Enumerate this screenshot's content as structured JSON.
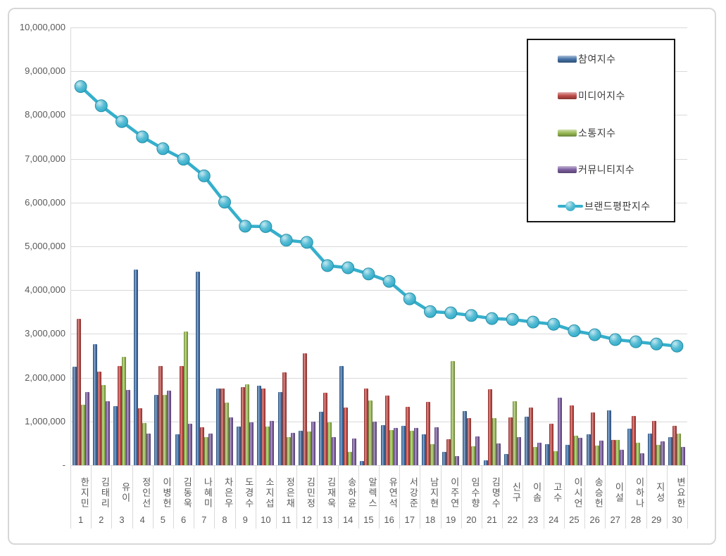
{
  "chart_data": {
    "type": "bar",
    "subtype": "grouped-bars-with-line-overlay",
    "title": "",
    "xlabel": "",
    "ylabel": "",
    "ylim": [
      0,
      10000000
    ],
    "y_step": 1000000,
    "grid": true,
    "legend_position": "top-right",
    "y_tick_labels": [
      "10,000,000",
      "9,000,000",
      "8,000,000",
      "7,000,000",
      "6,000,000",
      "5,000,000",
      "4,000,000",
      "3,000,000",
      "2,000,000",
      "1,000,000",
      "-"
    ],
    "categories": [
      "한지민",
      "김태리",
      "유이",
      "정인선",
      "이병헌",
      "김동욱",
      "나혜미",
      "차은우",
      "도경수",
      "소지섭",
      "정은채",
      "김민정",
      "김재욱",
      "송하윤",
      "알렉스",
      "유연석",
      "서강준",
      "남지현",
      "이주연",
      "임수향",
      "김명수",
      "신구",
      "이솜",
      "고수",
      "이시언",
      "송승헌",
      "이설",
      "이하나",
      "지성",
      "변요한"
    ],
    "ranks": [
      "1",
      "2",
      "3",
      "4",
      "5",
      "6",
      "7",
      "8",
      "9",
      "10",
      "11",
      "12",
      "13",
      "14",
      "15",
      "16",
      "17",
      "18",
      "19",
      "20",
      "21",
      "22",
      "23",
      "24",
      "25",
      "26",
      "27",
      "28",
      "29",
      "30"
    ],
    "series": [
      {
        "name": "참여지수",
        "color": "#4572A7",
        "values": [
          2250000,
          2760000,
          1350000,
          4470000,
          1610000,
          700000,
          4420000,
          1760000,
          890000,
          1820000,
          1670000,
          780000,
          1220000,
          2270000,
          90000,
          920000,
          900000,
          700000,
          310000,
          1240000,
          120000,
          260000,
          1110000,
          490000,
          470000,
          700000,
          1250000,
          830000,
          730000,
          650000
        ]
      },
      {
        "name": "미디어지수",
        "color": "#BE4B48",
        "values": [
          3350000,
          2140000,
          2260000,
          1310000,
          2270000,
          2260000,
          870000,
          1750000,
          1780000,
          1760000,
          2130000,
          2550000,
          1660000,
          1320000,
          1760000,
          1590000,
          1340000,
          1450000,
          600000,
          1080000,
          1740000,
          1100000,
          1320000,
          950000,
          1360000,
          1210000,
          580000,
          1130000,
          1010000,
          900000
        ]
      },
      {
        "name": "소통지수",
        "color": "#98B954",
        "values": [
          1380000,
          1840000,
          2480000,
          970000,
          1600000,
          3060000,
          650000,
          1430000,
          1850000,
          880000,
          650000,
          770000,
          980000,
          310000,
          1480000,
          800000,
          790000,
          480000,
          2380000,
          430000,
          1070000,
          1460000,
          410000,
          320000,
          680000,
          450000,
          580000,
          520000,
          460000,
          720000
        ]
      },
      {
        "name": "커뮤니티지수",
        "color": "#7D60A0",
        "values": [
          1670000,
          1470000,
          1720000,
          720000,
          1700000,
          950000,
          720000,
          1090000,
          980000,
          1010000,
          740000,
          1000000,
          640000,
          610000,
          1000000,
          860000,
          850000,
          870000,
          210000,
          660000,
          500000,
          640000,
          520000,
          1540000,
          630000,
          560000,
          360000,
          280000,
          550000,
          410000
        ]
      }
    ],
    "line_series": {
      "name": "브랜드평판지수",
      "color": "#35AFCC",
      "values": [
        8650000,
        8210000,
        7850000,
        7500000,
        7230000,
        6990000,
        6610000,
        6010000,
        5460000,
        5450000,
        5140000,
        5090000,
        4560000,
        4510000,
        4370000,
        4200000,
        3800000,
        3510000,
        3480000,
        3420000,
        3350000,
        3330000,
        3270000,
        3220000,
        3070000,
        2980000,
        2870000,
        2820000,
        2770000,
        2720000
      ]
    }
  }
}
